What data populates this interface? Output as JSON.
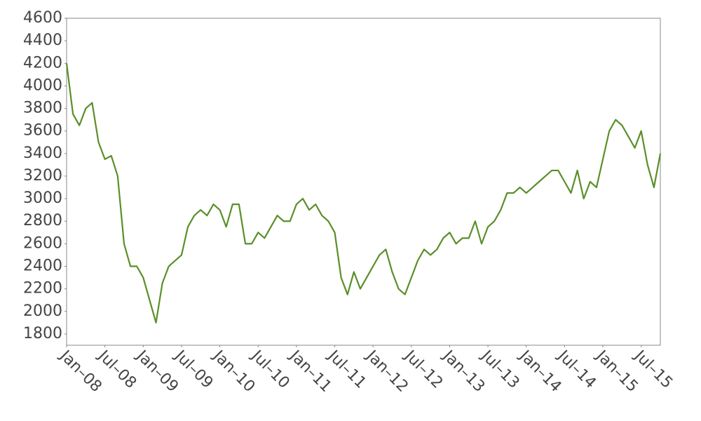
{
  "chart_data": {
    "type": "line",
    "x": [
      "2008-01",
      "2008-02",
      "2008-03",
      "2008-04",
      "2008-05",
      "2008-06",
      "2008-07",
      "2008-08",
      "2008-09",
      "2008-10",
      "2008-11",
      "2008-12",
      "2009-01",
      "2009-02",
      "2009-03",
      "2009-04",
      "2009-05",
      "2009-06",
      "2009-07",
      "2009-08",
      "2009-09",
      "2009-10",
      "2009-11",
      "2009-12",
      "2010-01",
      "2010-02",
      "2010-03",
      "2010-04",
      "2010-05",
      "2010-06",
      "2010-07",
      "2010-08",
      "2010-09",
      "2010-10",
      "2010-11",
      "2010-12",
      "2011-01",
      "2011-02",
      "2011-03",
      "2011-04",
      "2011-05",
      "2011-06",
      "2011-07",
      "2011-08",
      "2011-09",
      "2011-10",
      "2011-11",
      "2011-12",
      "2012-01",
      "2012-02",
      "2012-03",
      "2012-04",
      "2012-05",
      "2012-06",
      "2012-07",
      "2012-08",
      "2012-09",
      "2012-10",
      "2012-11",
      "2012-12",
      "2013-01",
      "2013-02",
      "2013-03",
      "2013-04",
      "2013-05",
      "2013-06",
      "2013-07",
      "2013-08",
      "2013-09",
      "2013-10",
      "2013-11",
      "2013-12",
      "2014-01",
      "2014-02",
      "2014-03",
      "2014-04",
      "2014-05",
      "2014-06",
      "2014-07",
      "2014-08",
      "2014-09",
      "2014-10",
      "2014-11",
      "2014-12",
      "2015-01",
      "2015-02",
      "2015-03",
      "2015-04",
      "2015-05",
      "2015-06",
      "2015-07",
      "2015-08",
      "2015-09",
      "2015-10"
    ],
    "values": [
      4200,
      3750,
      3650,
      3800,
      3850,
      3500,
      3350,
      3380,
      3200,
      2600,
      2400,
      2400,
      2300,
      2100,
      1900,
      2250,
      2400,
      2450,
      2500,
      2750,
      2850,
      2900,
      2850,
      2950,
      2900,
      2750,
      2950,
      2950,
      2600,
      2600,
      2700,
      2650,
      2750,
      2850,
      2800,
      2800,
      2950,
      3000,
      2900,
      2950,
      2850,
      2800,
      2700,
      2300,
      2150,
      2350,
      2200,
      2300,
      2400,
      2500,
      2550,
      2350,
      2200,
      2150,
      2300,
      2450,
      2550,
      2500,
      2550,
      2650,
      2700,
      2600,
      2650,
      2650,
      2800,
      2600,
      2750,
      2800,
      2900,
      3050,
      3050,
      3100,
      3050,
      3100,
      3150,
      3200,
      3250,
      3250,
      3150,
      3050,
      3250,
      3000,
      3150,
      3100,
      3350,
      3600,
      3700,
      3650,
      3550,
      3450,
      3600,
      3300,
      3100,
      3400
    ],
    "color": "#5a8f29",
    "xlim": [
      "2008-01",
      "2015-10"
    ],
    "xticks": [
      {
        "value": "2008-01",
        "label": "Jan–08"
      },
      {
        "value": "2008-07",
        "label": "Jul–08"
      },
      {
        "value": "2009-01",
        "label": "Jan–09"
      },
      {
        "value": "2009-07",
        "label": "Jul–09"
      },
      {
        "value": "2010-01",
        "label": "Jan–10"
      },
      {
        "value": "2010-07",
        "label": "Jul–10"
      },
      {
        "value": "2011-01",
        "label": "Jan–11"
      },
      {
        "value": "2011-07",
        "label": "Jul–11"
      },
      {
        "value": "2012-01",
        "label": "Jan–12"
      },
      {
        "value": "2012-07",
        "label": "Jul–12"
      },
      {
        "value": "2013-01",
        "label": "Jan–13"
      },
      {
        "value": "2013-07",
        "label": "Jul–13"
      },
      {
        "value": "2014-01",
        "label": "Jan–14"
      },
      {
        "value": "2014-07",
        "label": "Jul–14"
      },
      {
        "value": "2015-01",
        "label": "Jan–15"
      },
      {
        "value": "2015-07",
        "label": "Jul–15"
      }
    ],
    "ylim": [
      1700,
      4600
    ],
    "yticks": [
      1800,
      2000,
      2200,
      2400,
      2600,
      2800,
      3000,
      3200,
      3400,
      3600,
      3800,
      4000,
      4200,
      4400,
      4600
    ],
    "grid": false
  }
}
